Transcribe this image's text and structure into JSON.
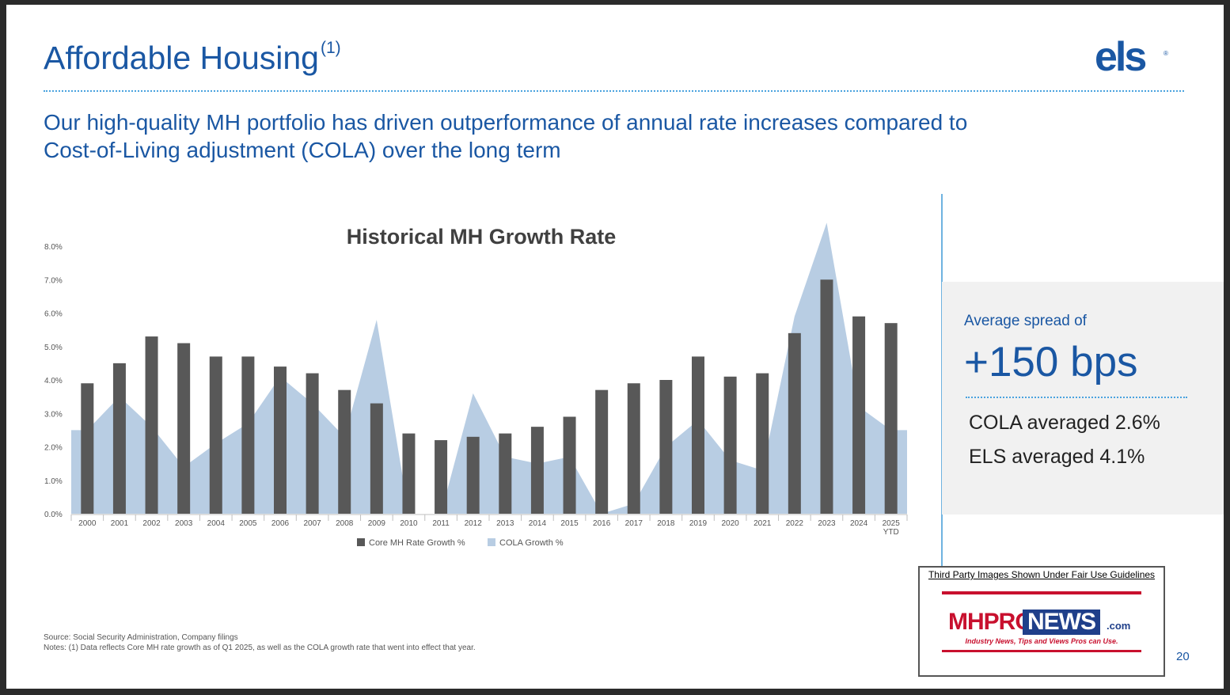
{
  "header": {
    "title": "Affordable Housing",
    "title_superscript": "(1)",
    "logo_text": "els",
    "logo_mark": "®",
    "subtitle": "Our high-quality MH portfolio has driven outperformance of annual rate increases compared to Cost-of-Living adjustment (COLA) over the long term"
  },
  "chart_data": {
    "type": "bar",
    "title": "Historical MH Growth Rate",
    "categories": [
      "2000",
      "2001",
      "2002",
      "2003",
      "2004",
      "2005",
      "2006",
      "2007",
      "2008",
      "2009",
      "2010",
      "2011",
      "2012",
      "2013",
      "2014",
      "2015",
      "2016",
      "2017",
      "2018",
      "2019",
      "2020",
      "2021",
      "2022",
      "2023",
      "2024",
      "2025 YTD"
    ],
    "series": [
      {
        "name": "Core MH Rate Growth %",
        "type": "bar",
        "color": "#585858",
        "values": [
          3.9,
          4.5,
          5.3,
          5.1,
          4.7,
          4.7,
          4.4,
          4.2,
          3.7,
          3.3,
          2.4,
          2.2,
          2.3,
          2.4,
          2.6,
          2.9,
          3.7,
          3.9,
          4.0,
          4.7,
          4.1,
          4.2,
          5.4,
          7.0,
          5.9,
          5.7
        ]
      },
      {
        "name": "COLA Growth %",
        "type": "area",
        "color": "#b8cde3",
        "values": [
          2.5,
          3.5,
          2.6,
          1.4,
          2.1,
          2.7,
          4.1,
          3.3,
          2.3,
          5.8,
          0.0,
          0.0,
          3.6,
          1.7,
          1.5,
          1.7,
          0.0,
          0.3,
          2.0,
          2.8,
          1.6,
          1.3,
          5.9,
          8.7,
          3.2,
          2.5
        ]
      }
    ],
    "yticks": [
      "0.0%",
      "1.0%",
      "2.0%",
      "3.0%",
      "4.0%",
      "5.0%",
      "6.0%",
      "7.0%",
      "8.0%"
    ],
    "ylim": [
      0,
      8
    ],
    "legend_position": "bottom"
  },
  "panel": {
    "spread_label": "Average spread of",
    "spread_value": "+150 bps",
    "cola_line": "COLA averaged 2.6%",
    "els_line": "ELS averaged 4.1%"
  },
  "footer": {
    "source": "Source: Social Security Administration, Company filings",
    "notes": "Notes:  (1) Data reflects Core MH rate growth as of Q1 2025, as well as the COLA growth rate that went into effect that year.",
    "page_number": "20"
  },
  "badge": {
    "caption": "Third Party Images Shown Under Fair Use Guidelines",
    "brand_mh": "MHPRO",
    "brand_news": "NEWS",
    "brand_com": ".com",
    "tagline": "Industry News, Tips and Views Pros can Use."
  }
}
